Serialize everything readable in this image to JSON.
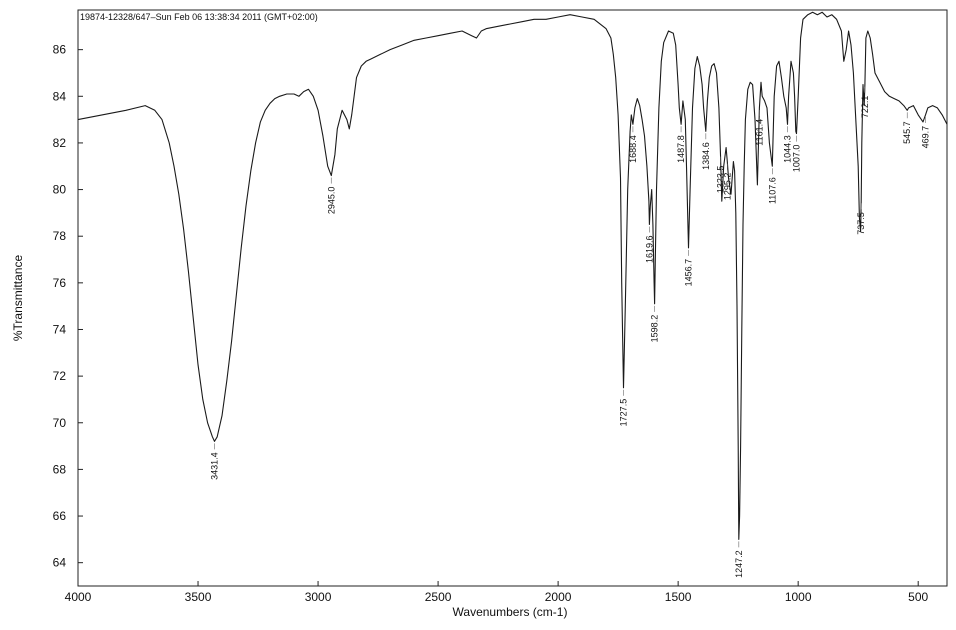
{
  "header": {
    "text": "19874-12328/647–Sun Feb 06 13:38:34 2011 (GMT+02:00)"
  },
  "chart_data": {
    "type": "line",
    "title": "",
    "xlabel": "Wavenumbers (cm-1)",
    "ylabel": "%Transmittance",
    "xlim": [
      4000,
      380
    ],
    "ylim": [
      63,
      87.7
    ],
    "x_reversed": true,
    "grid": false,
    "legend": "none",
    "x_ticks": [
      4000,
      3500,
      3000,
      2500,
      2000,
      1500,
      1000,
      500
    ],
    "y_ticks": [
      64,
      66,
      68,
      70,
      72,
      74,
      76,
      78,
      80,
      82,
      84,
      86
    ],
    "series": [
      {
        "color": "#1a1a1a",
        "x": [
          4000,
          3900,
          3800,
          3720,
          3680,
          3650,
          3620,
          3600,
          3580,
          3560,
          3540,
          3520,
          3500,
          3480,
          3460,
          3440,
          3431.4,
          3420,
          3400,
          3380,
          3360,
          3340,
          3320,
          3300,
          3280,
          3260,
          3240,
          3220,
          3200,
          3180,
          3160,
          3130,
          3100,
          3080,
          3060,
          3040,
          3020,
          3000,
          2980,
          2960,
          2945,
          2930,
          2920,
          2900,
          2880,
          2870,
          2860,
          2850,
          2840,
          2820,
          2800,
          2780,
          2740,
          2700,
          2650,
          2600,
          2550,
          2500,
          2450,
          2400,
          2360,
          2340,
          2320,
          2300,
          2250,
          2200,
          2150,
          2100,
          2050,
          2000,
          1950,
          1900,
          1850,
          1800,
          1780,
          1770,
          1760,
          1750,
          1740,
          1735,
          1727.5,
          1720,
          1710,
          1700,
          1695,
          1688.4,
          1680,
          1670,
          1660,
          1650,
          1640,
          1630,
          1622,
          1619.6,
          1616,
          1610,
          1605,
          1600,
          1598.2,
          1595,
          1590,
          1580,
          1570,
          1560,
          1540,
          1520,
          1510,
          1500,
          1495,
          1487.8,
          1480,
          1470,
          1465,
          1456.7,
          1450,
          1440,
          1430,
          1420,
          1410,
          1400,
          1394,
          1384.6,
          1378,
          1370,
          1360,
          1350,
          1340,
          1330,
          1323.5,
          1318,
          1310,
          1300,
          1295.2,
          1290,
          1280,
          1275,
          1270,
          1265,
          1260,
          1255,
          1250,
          1247.2,
          1244,
          1240,
          1235,
          1230,
          1225,
          1220,
          1210,
          1200,
          1190,
          1180,
          1170,
          1161.4,
          1155,
          1150,
          1140,
          1130,
          1120,
          1107.6,
          1100,
          1090,
          1080,
          1070,
          1060,
          1050,
          1044.3,
          1040,
          1030,
          1020,
          1015,
          1010,
          1007,
          1000,
          990,
          980,
          960,
          940,
          920,
          900,
          880,
          860,
          840,
          820,
          810,
          800,
          790,
          780,
          770,
          760,
          750,
          745,
          740,
          737.5,
          735,
          730,
          725,
          722.1,
          718,
          710,
          700,
          690,
          680,
          660,
          640,
          620,
          600,
          580,
          560,
          545.7,
          540,
          520,
          500,
          480,
          469.7,
          460,
          440,
          420,
          400,
          380
        ],
        "y": [
          83.0,
          83.2,
          83.4,
          83.6,
          83.4,
          83.0,
          82.0,
          81.0,
          79.8,
          78.3,
          76.5,
          74.5,
          72.5,
          71.0,
          70.0,
          69.4,
          69.2,
          69.4,
          70.3,
          71.8,
          73.5,
          75.5,
          77.5,
          79.3,
          80.8,
          82.0,
          82.9,
          83.4,
          83.7,
          83.9,
          84.0,
          84.1,
          84.1,
          84.0,
          84.2,
          84.3,
          84.0,
          83.4,
          82.3,
          81.0,
          80.6,
          81.5,
          82.6,
          83.4,
          83.0,
          82.6,
          83.2,
          84.0,
          84.8,
          85.3,
          85.5,
          85.6,
          85.8,
          86.0,
          86.2,
          86.4,
          86.5,
          86.6,
          86.7,
          86.8,
          86.6,
          86.5,
          86.8,
          86.9,
          87.0,
          87.1,
          87.2,
          87.3,
          87.3,
          87.4,
          87.5,
          87.4,
          87.3,
          86.9,
          86.5,
          85.8,
          84.8,
          83.2,
          80.5,
          76.0,
          71.5,
          75.0,
          80.0,
          82.5,
          83.2,
          82.8,
          83.5,
          83.9,
          83.6,
          83.0,
          82.3,
          81.0,
          79.5,
          78.5,
          79.3,
          80.0,
          78.5,
          76.0,
          75.1,
          77.0,
          80.0,
          83.5,
          85.5,
          86.3,
          86.8,
          86.7,
          86.2,
          84.5,
          83.5,
          82.8,
          83.8,
          83.0,
          81.0,
          77.5,
          80.0,
          83.5,
          85.2,
          85.7,
          85.3,
          84.5,
          83.5,
          82.5,
          83.8,
          84.8,
          85.3,
          85.4,
          85.0,
          83.5,
          81.5,
          79.5,
          81.0,
          81.8,
          81.2,
          80.5,
          79.8,
          80.5,
          81.2,
          80.8,
          79.0,
          75.0,
          69.0,
          65.0,
          66.0,
          69.0,
          74.0,
          78.5,
          81.0,
          83.0,
          84.3,
          84.6,
          84.5,
          83.0,
          80.2,
          83.5,
          84.6,
          84.0,
          83.8,
          83.5,
          82.0,
          81.0,
          84.0,
          85.3,
          85.5,
          84.8,
          84.0,
          83.5,
          82.8,
          84.0,
          85.5,
          85.0,
          84.0,
          82.5,
          82.4,
          84.0,
          86.5,
          87.3,
          87.5,
          87.6,
          87.5,
          87.6,
          87.4,
          87.5,
          87.3,
          86.8,
          85.5,
          86.0,
          86.8,
          86.2,
          85.0,
          83.0,
          81.0,
          78.8,
          78.2,
          79.5,
          82.0,
          84.5,
          83.6,
          84.5,
          86.5,
          86.8,
          86.5,
          85.8,
          85.0,
          84.6,
          84.2,
          84.0,
          83.9,
          83.8,
          83.6,
          83.4,
          83.5,
          83.6,
          83.2,
          82.9,
          83.2,
          83.5,
          83.6,
          83.5,
          83.2,
          82.8
        ]
      }
    ],
    "annotations": [
      {
        "text": "3431.4",
        "x": 3431.4
      },
      {
        "text": "2945.0",
        "x": 2945.0
      },
      {
        "text": "1727.5",
        "x": 1727.5
      },
      {
        "text": "1688.4",
        "x": 1688.4
      },
      {
        "text": "1619.6",
        "x": 1619.6
      },
      {
        "text": "1598.2",
        "x": 1598.2
      },
      {
        "text": "1487.8",
        "x": 1487.8
      },
      {
        "text": "1456.7",
        "x": 1456.7
      },
      {
        "text": "1384.6",
        "x": 1384.6
      },
      {
        "text": "1323.5",
        "x": 1323.5
      },
      {
        "text": "1295.2",
        "x": 1295.2
      },
      {
        "text": "1247.2",
        "x": 1247.2
      },
      {
        "text": "1161.4",
        "x": 1161.4
      },
      {
        "text": "1107.6",
        "x": 1107.6
      },
      {
        "text": "1044.3",
        "x": 1044.3
      },
      {
        "text": "1007.0",
        "x": 1007.0
      },
      {
        "text": "737.5",
        "x": 737.5
      },
      {
        "text": "722.1",
        "x": 722.1
      },
      {
        "text": "545.7",
        "x": 545.7
      },
      {
        "text": "469.7",
        "x": 469.7
      }
    ]
  }
}
